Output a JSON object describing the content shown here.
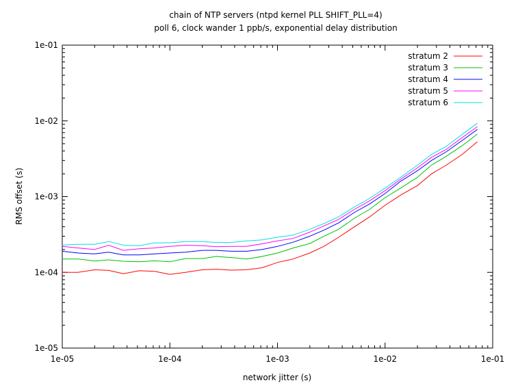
{
  "chart_data": {
    "type": "line",
    "title": "chain of NTP servers (ntpd kernel PLL SHIFT_PLL=4)",
    "subtitle": "poll 6, clock wander 1 ppb/s, exponential delay distribution",
    "xlabel": "network jitter (s)",
    "ylabel": "RMS offset (s)",
    "xscale": "log",
    "yscale": "log",
    "xlim": [
      1e-05,
      0.1
    ],
    "ylim": [
      1e-05,
      0.1
    ],
    "xticks": [
      "1e-05",
      "1e-04",
      "1e-03",
      "1e-02",
      "1e-01"
    ],
    "yticks": [
      "1e-05",
      "1e-04",
      "1e-03",
      "1e-02",
      "1e-01"
    ],
    "legend_position": "top-right",
    "grid": false,
    "x": [
      1e-05,
      1.4e-05,
      2e-05,
      2.7e-05,
      3.7e-05,
      5.2e-05,
      7.2e-05,
      0.0001,
      0.00014,
      0.0002,
      0.00027,
      0.00037,
      0.00052,
      0.00072,
      0.001,
      0.0014,
      0.002,
      0.0027,
      0.0037,
      0.0052,
      0.0072,
      0.01,
      0.014,
      0.02,
      0.027,
      0.037,
      0.052,
      0.072
    ],
    "series": [
      {
        "name": "stratum 2",
        "color": "#ff0000",
        "values": [
          0.0001,
          0.0001,
          0.000108,
          0.000106,
          9.6e-05,
          0.000105,
          0.000103,
          9.4e-05,
          0.0001,
          0.000108,
          0.00011,
          0.000107,
          0.000108,
          0.000115,
          0.000135,
          0.00015,
          0.00018,
          0.00022,
          0.00029,
          0.0004,
          0.00054,
          0.00077,
          0.00105,
          0.0014,
          0.002,
          0.0026,
          0.0036,
          0.0053
        ]
      },
      {
        "name": "stratum 3",
        "color": "#00c000",
        "values": [
          0.00015,
          0.00015,
          0.000141,
          0.000146,
          0.00014,
          0.000138,
          0.000142,
          0.000138,
          0.000152,
          0.000152,
          0.000162,
          0.000157,
          0.00015,
          0.000162,
          0.00018,
          0.00021,
          0.00024,
          0.0003,
          0.00037,
          0.00052,
          0.00068,
          0.00097,
          0.0013,
          0.0018,
          0.0026,
          0.0034,
          0.0047,
          0.0067
        ]
      },
      {
        "name": "stratum 4",
        "color": "#0000ff",
        "values": [
          0.00019,
          0.00018,
          0.000175,
          0.000185,
          0.00017,
          0.00017,
          0.000175,
          0.00018,
          0.000185,
          0.000195,
          0.000195,
          0.00019,
          0.00019,
          0.0002,
          0.00022,
          0.00025,
          0.0003,
          0.00036,
          0.00045,
          0.00062,
          0.0008,
          0.0011,
          0.0016,
          0.0022,
          0.003,
          0.0039,
          0.0055,
          0.0077
        ]
      },
      {
        "name": "stratum 5",
        "color": "#ff00ff",
        "values": [
          0.00022,
          0.00021,
          0.0002,
          0.000228,
          0.000195,
          0.000205,
          0.00021,
          0.00022,
          0.000228,
          0.000225,
          0.000218,
          0.00022,
          0.00022,
          0.000238,
          0.00026,
          0.00028,
          0.00034,
          0.00041,
          0.0005,
          0.00068,
          0.00088,
          0.0012,
          0.0017,
          0.0024,
          0.0033,
          0.0042,
          0.006,
          0.0084
        ]
      },
      {
        "name": "stratum 6",
        "color": "#00e0e0",
        "values": [
          0.00023,
          0.000235,
          0.000235,
          0.000255,
          0.000228,
          0.000225,
          0.000245,
          0.000245,
          0.000255,
          0.000255,
          0.000248,
          0.000248,
          0.00026,
          0.000268,
          0.00029,
          0.00031,
          0.00037,
          0.00044,
          0.00054,
          0.00073,
          0.00095,
          0.0013,
          0.0018,
          0.0026,
          0.0036,
          0.0046,
          0.0066,
          0.0093
        ]
      }
    ]
  }
}
